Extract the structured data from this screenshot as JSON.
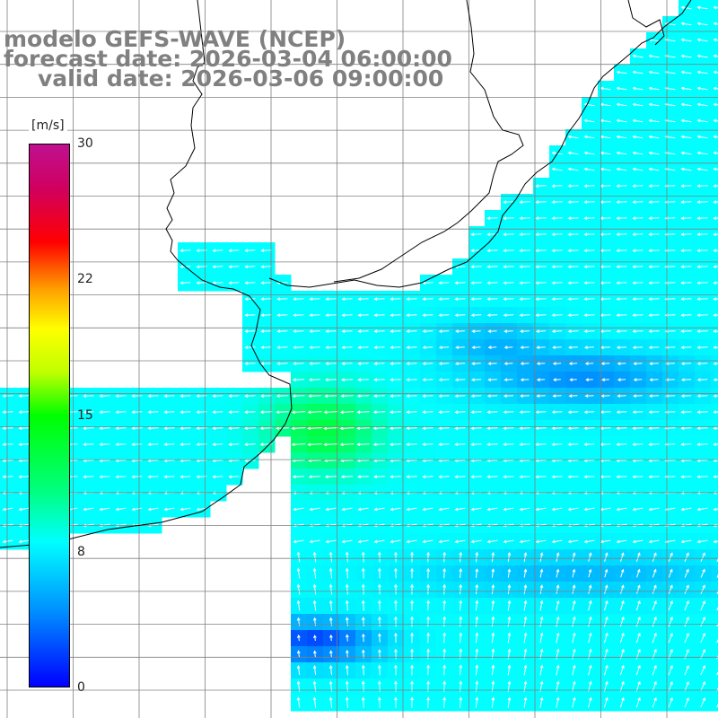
{
  "title": {
    "line1": "modelo GEFS-WAVE (NCEP)",
    "line2": "forecast date: 2026-03-04 06:00:00",
    "line3": "valid date: 2026-03-06 09:00:00"
  },
  "colorbar": {
    "unit": "[m/s]",
    "min": 0,
    "max": 30,
    "ticks": [
      "30",
      "22",
      "15",
      "8",
      "0"
    ],
    "colors": [
      "#0000ff",
      "#0090ff",
      "#00ffff",
      "#00ff00",
      "#ffff00",
      "#ffa000",
      "#ff0000",
      "#c01090"
    ]
  },
  "map": {
    "land_color": "#ffffff",
    "coastline_color": "#000000",
    "grid_color": "#808080",
    "vector_color": "#ffffff"
  }
}
